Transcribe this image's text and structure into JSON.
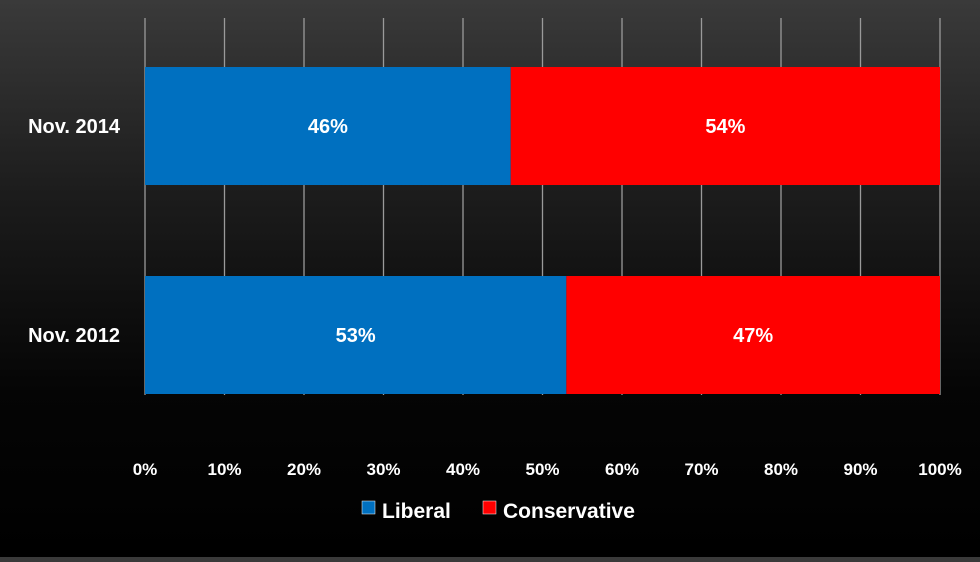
{
  "chart_data": {
    "type": "bar",
    "orientation": "horizontal",
    "stacked": "100%",
    "categories": [
      "Nov. 2014",
      "Nov. 2012"
    ],
    "series": [
      {
        "name": "Liberal",
        "values": [
          46,
          53
        ],
        "color": "#0070c0",
        "labels": [
          "46%",
          "53%"
        ]
      },
      {
        "name": "Conservative",
        "values": [
          54,
          47
        ],
        "color": "#ff0000",
        "labels": [
          "54%",
          "47%"
        ]
      }
    ],
    "xlim": [
      0,
      100
    ],
    "xticks": [
      "0%",
      "10%",
      "20%",
      "30%",
      "40%",
      "50%",
      "60%",
      "70%",
      "80%",
      "90%",
      "100%"
    ],
    "grid": "vertical",
    "legend": "bottom",
    "background": "#000000",
    "text_color": "#ffffff"
  }
}
